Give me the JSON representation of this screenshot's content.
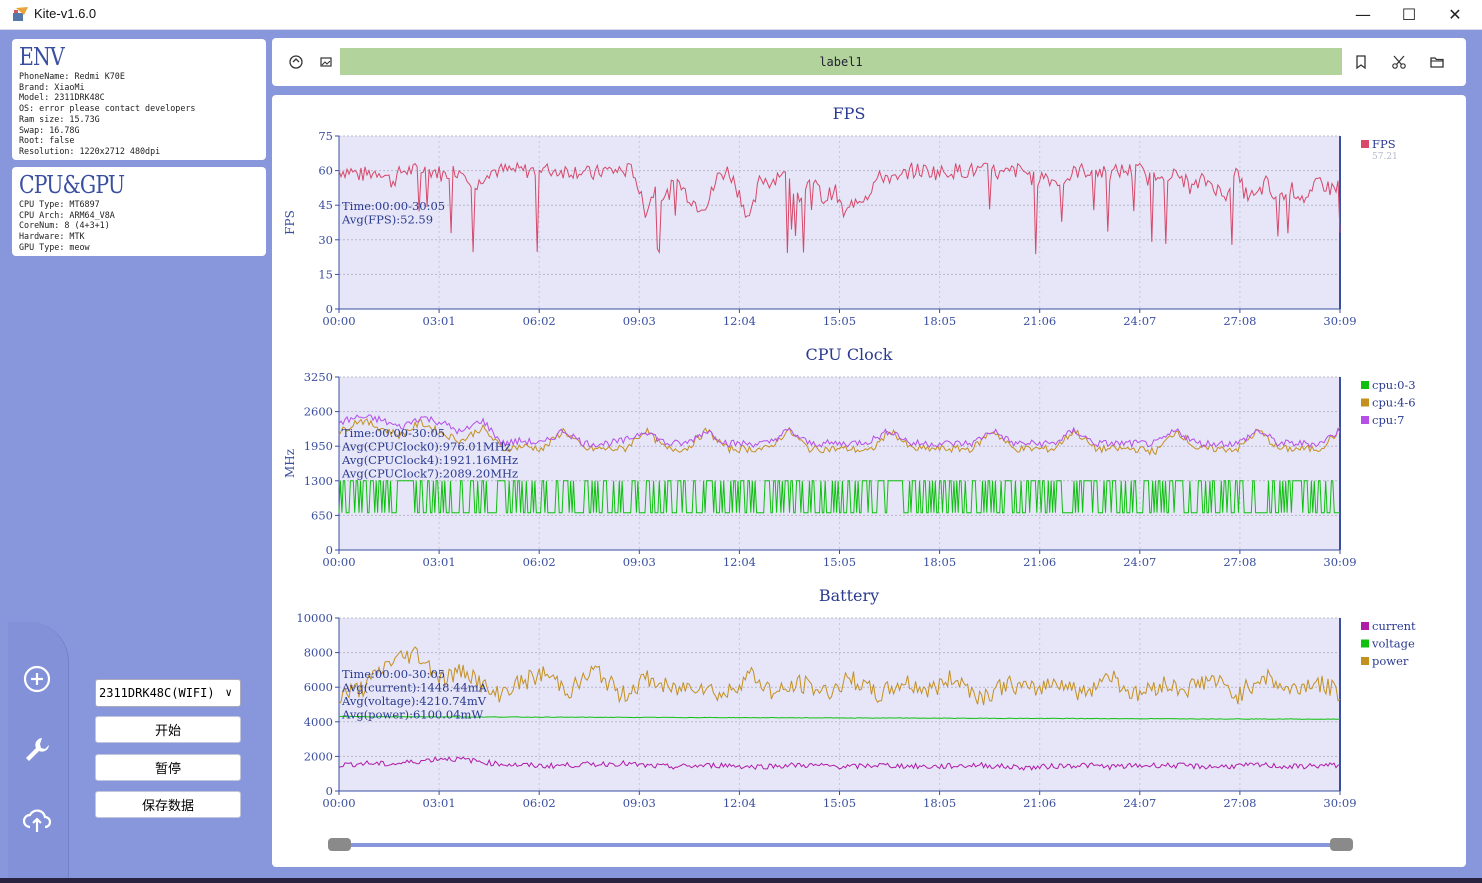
{
  "app": {
    "title": "Kite-v1.6.0",
    "window_controls": [
      "minimize",
      "maximize",
      "close"
    ]
  },
  "env_card": {
    "heading": "ENV",
    "lines": [
      "PhoneName: Redmi K70E",
      "Brand: XiaoMi",
      "Model: 2311DRK48C",
      "OS: error please contact developers",
      "Ram size: 15.73G",
      "Swap: 16.78G",
      "Root: false",
      "Resolution: 1220x2712 480dpi"
    ]
  },
  "cpu_card": {
    "heading": "CPU&GPU",
    "lines": [
      "CPU Type: MT6897",
      "CPU Arch: ARM64_V8A",
      "CoreNum: 8 (4+3+1)",
      "Hardware: MTK",
      "GPU Type: meow"
    ]
  },
  "sidebar": {
    "icons": [
      "add-circle-icon",
      "wrench-icon",
      "cloud-upload-icon"
    ]
  },
  "controls": {
    "device_select": "2311DRK48C(WIFI)",
    "start_label": "开始",
    "pause_label": "暂停",
    "save_label": "保存数据"
  },
  "toolbar": {
    "label_text": "label1",
    "left_icons": [
      "refresh-icon",
      "image-icon"
    ],
    "right_icons": [
      "bookmark-icon",
      "scissors-icon",
      "folder-icon"
    ]
  },
  "colors": {
    "window_bg": "#8896db",
    "plot_bg": "#e6e6f8",
    "fps": "#d7486a",
    "cpu_0_3": "#10c010",
    "cpu_4_6": "#c49020",
    "cpu_7": "#b450e8",
    "current": "#b01ca8",
    "voltage": "#10c010",
    "power": "#c49020",
    "label_bar": "#b3d39c"
  },
  "chart_data": [
    {
      "type": "line",
      "title": "FPS",
      "ylabel": "FPS",
      "x_ticks": [
        "00:00",
        "03:01",
        "06:02",
        "09:03",
        "12:04",
        "15:05",
        "18:05",
        "21:06",
        "24:07",
        "27:08",
        "30:09"
      ],
      "y_ticks": [
        "0",
        "15",
        "30",
        "45",
        "60",
        "75"
      ],
      "ylim": [
        0,
        75
      ],
      "grid": true,
      "legend_position": "right",
      "annotations": [
        "Time:00:00-30:05",
        "Avg(FPS):52.59"
      ],
      "series": [
        {
          "name": "FPS",
          "legend_value": "57.21",
          "values": [
            60,
            60,
            58,
            59,
            60,
            55,
            60,
            60,
            60,
            60,
            58,
            60,
            60,
            52,
            60,
            60,
            60,
            60,
            60,
            60,
            60,
            60,
            60,
            60,
            58,
            60,
            60,
            60,
            60,
            42,
            52,
            48,
            56,
            50,
            45,
            46,
            58,
            60,
            50,
            38,
            57,
            55,
            60,
            52,
            48,
            56,
            47,
            52,
            40,
            48,
            49,
            56,
            58,
            55,
            60,
            60,
            60,
            59,
            60,
            60,
            60,
            60,
            60,
            58,
            60,
            60,
            56,
            58,
            55,
            56,
            60,
            60,
            60,
            58,
            60,
            60,
            60,
            56,
            60,
            58,
            57,
            52,
            56,
            54,
            48,
            60,
            50,
            48,
            55,
            45,
            53,
            50,
            47,
            56,
            52,
            54
          ]
        }
      ]
    },
    {
      "type": "line",
      "title": "CPU Clock",
      "ylabel": "MHz",
      "x_ticks": [
        "00:00",
        "03:01",
        "06:02",
        "09:03",
        "12:04",
        "15:05",
        "18:05",
        "21:06",
        "24:07",
        "27:08",
        "30:09"
      ],
      "y_ticks": [
        "0",
        "650",
        "1300",
        "1950",
        "2600",
        "3250"
      ],
      "ylim": [
        0,
        3250
      ],
      "grid": true,
      "legend_position": "right",
      "annotations": [
        "Time:00:00-30:05",
        "Avg(CPUClock0):976.01MHz",
        "Avg(CPUClock4):1921.16MHz",
        "Avg(CPUClock7):2089.20MHz"
      ],
      "series": [
        {
          "name": "cpu:0-3",
          "low": 700,
          "high": 1300
        },
        {
          "name": "cpu:4-6",
          "values": [
            2200,
            2450,
            2300,
            2150,
            2400,
            2200,
            2050,
            2300,
            1900,
            1950,
            1900,
            2250,
            1900,
            1900,
            1900,
            2250,
            1900,
            1900,
            2250,
            1900,
            1900,
            1900,
            2250,
            1900,
            1900,
            1900,
            1850,
            2250,
            1900,
            1900,
            1900,
            1900,
            2250,
            1900,
            1900,
            1900,
            2250,
            1900,
            1900,
            1900,
            1850,
            2250,
            1900,
            1900,
            1900,
            2250,
            1900,
            1900,
            1900,
            2250
          ]
        },
        {
          "name": "cpu:7",
          "values": [
            2400,
            2500,
            2450,
            2300,
            2500,
            2400,
            2200,
            2450,
            2000,
            2050,
            2000,
            2250,
            2000,
            2000,
            2050,
            2250,
            2000,
            2000,
            2250,
            2000,
            2000,
            2000,
            2250,
            2000,
            2000,
            2000,
            2050,
            2250,
            2000,
            2000,
            2000,
            2000,
            2250,
            2000,
            2000,
            2000,
            2250,
            2000,
            2000,
            2000,
            2000,
            2250,
            2000,
            2000,
            2000,
            2250,
            2000,
            2000,
            2000,
            2250
          ]
        }
      ]
    },
    {
      "type": "line",
      "title": "Battery",
      "ylabel": "",
      "x_ticks": [
        "00:00",
        "03:01",
        "06:02",
        "09:03",
        "12:04",
        "15:05",
        "18:05",
        "21:06",
        "24:07",
        "27:08",
        "30:09"
      ],
      "y_ticks": [
        "0",
        "2000",
        "4000",
        "6000",
        "8000",
        "10000"
      ],
      "ylim": [
        0,
        10000
      ],
      "grid": true,
      "legend_position": "right",
      "annotations": [
        "Time:00:00-30:05",
        "Avg(current):1448.44mA",
        "Avg(voltage):4210.74mV",
        "Avg(power):6100.04mW"
      ],
      "series": [
        {
          "name": "current",
          "values": [
            1500,
            1600,
            1550,
            1700,
            1900,
            1800,
            1600,
            1500,
            1450,
            1500,
            1550,
            1600,
            1450,
            1400,
            1450,
            1500,
            1400,
            1450,
            1500,
            1450,
            1400,
            1500,
            1450,
            1400,
            1450,
            1500,
            1400,
            1350,
            1450,
            1500,
            1400,
            1450,
            1500,
            1450,
            1400,
            1450,
            1500,
            1400,
            1450,
            1500
          ]
        },
        {
          "name": "voltage",
          "values": [
            4300,
            4290,
            4280,
            4270,
            4260,
            4250,
            4240,
            4230,
            4220,
            4210,
            4200,
            4190,
            4180,
            4170,
            4160,
            4150
          ]
        },
        {
          "name": "power",
          "values": [
            5500,
            6000,
            7500,
            8000,
            6500,
            7000,
            5500,
            6200,
            6800,
            5800,
            7000,
            5500,
            6500,
            5800,
            6200,
            5500,
            6800,
            5600,
            6200,
            5700,
            6500,
            5500,
            6300,
            5800,
            6600,
            5400,
            6200,
            5800,
            6400,
            5600,
            6800,
            5500,
            6200,
            5900,
            6500,
            5500,
            6700,
            5800,
            6300,
            5700
          ]
        }
      ]
    }
  ]
}
